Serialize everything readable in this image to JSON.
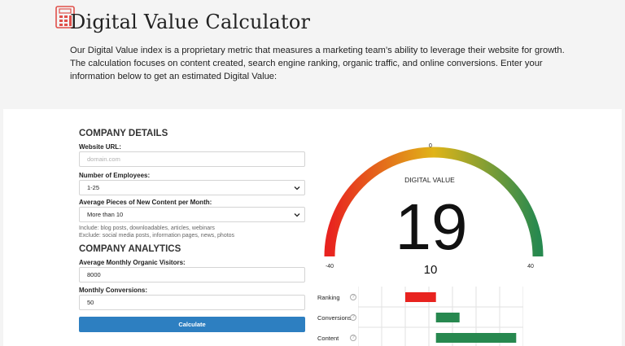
{
  "page": {
    "title": "Digital Value Calculator",
    "intro": "Our Digital Value index is a proprietary metric that measures a marketing team’s ability to leverage their website for growth.  The calculation focuses on content created, search engine ranking, organic traffic, and online conversions.  Enter your information below to get an estimated Digital Value:"
  },
  "form": {
    "company_details_heading": "COMPANY DETAILS",
    "website_url": {
      "label": "Website URL:",
      "placeholder": "domain.com",
      "value": ""
    },
    "employees": {
      "label": "Number of Employees:",
      "value": "1-25"
    },
    "content": {
      "label": "Average Pieces of New Content per Month:",
      "value": "More than 10",
      "include_hint": "Include: blog posts, downloadables, articles, webinars",
      "exclude_hint": "Exclude: social media posts, information pages, news, photos"
    },
    "company_analytics_heading": "COMPANY ANALYTICS",
    "organic_visitors": {
      "label": "Average Monthly Organic Visitors:",
      "value": "8000"
    },
    "conversions": {
      "label": "Monthly Conversions:",
      "value": "50"
    },
    "calculate_label": "Calculate"
  },
  "gauge": {
    "title": "DIGITAL VALUE",
    "value": "19",
    "secondary_value": "10",
    "min_label": "-40",
    "mid_label": "0",
    "max_label": "40",
    "colors": {
      "low": "#e8231f",
      "mid": "#e0b418",
      "high": "#27894f"
    }
  },
  "breakdown": {
    "rows": [
      {
        "label": "Ranking",
        "help": "?",
        "color": "#e8231f",
        "start": 2,
        "end": 3.3
      },
      {
        "label": "Conversions",
        "help": "?",
        "color": "#27884f",
        "start": 3.3,
        "end": 4.3
      },
      {
        "label": "Content",
        "help": "?",
        "color": "#27884f",
        "start": 3.3,
        "end": 6.7
      }
    ],
    "grid_columns": 7
  }
}
